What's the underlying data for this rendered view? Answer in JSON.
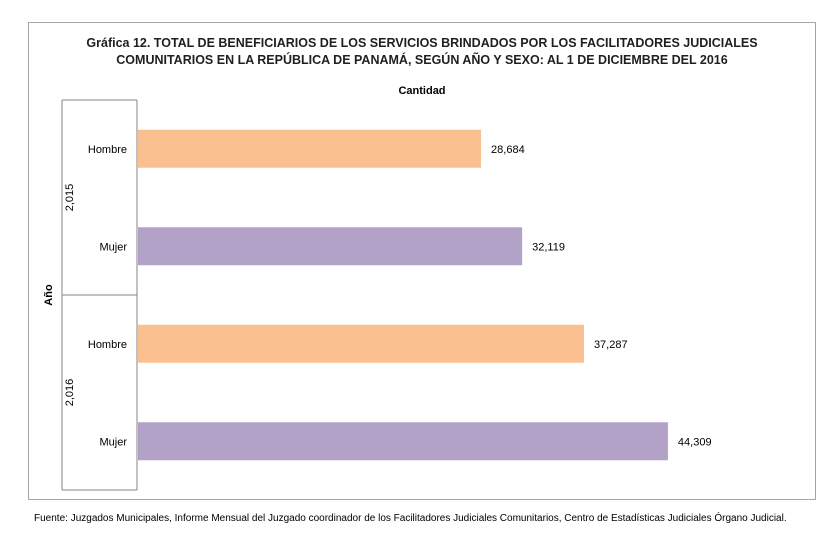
{
  "title_line1": "Gráfica 12.  TOTAL DE BENEFICIARIOS DE LOS SERVICIOS BRINDADOS POR LOS FACILITADORES JUDICIALES",
  "title_line2": "COMUNITARIOS EN LA REPÚBLICA DE PANAMÁ, SEGÚN AÑO Y SEXO: AL 1 DE DICIEMBRE DEL 2016",
  "source": "Fuente: Juzgados Municipales, Informe Mensual del Juzgado coordinador de los Facilitadores Judiciales Comunitarios, Centro de Estadísticas Judiciales Órgano Judicial.",
  "colors": {
    "hombre": "#fac090",
    "mujer": "#b3a2c7"
  },
  "chart_data": {
    "type": "bar",
    "orientation": "horizontal",
    "title": "Gráfica 12.  TOTAL DE BENEFICIARIOS DE LOS SERVICIOS BRINDADOS POR LOS FACILITADORES JUDICIALES COMUNITARIOS EN LA REPÚBLICA DE PANAMÁ, SEGÚN AÑO Y SEXO: AL 1 DE DICIEMBRE DEL 2016",
    "xlabel": "Cantidad",
    "ylabel": "Año",
    "xlim": [
      0,
      50000
    ],
    "grid": false,
    "groups": [
      {
        "label": "2,015",
        "bars": [
          {
            "category": "Hombre",
            "value": 28684,
            "label": "28,684"
          },
          {
            "category": "Mujer",
            "value": 32119,
            "label": "32,119"
          }
        ]
      },
      {
        "label": "2,016",
        "bars": [
          {
            "category": "Hombre",
            "value": 37287,
            "label": "37,287"
          },
          {
            "category": "Mujer",
            "value": 44309,
            "label": "44,309"
          }
        ]
      }
    ]
  }
}
